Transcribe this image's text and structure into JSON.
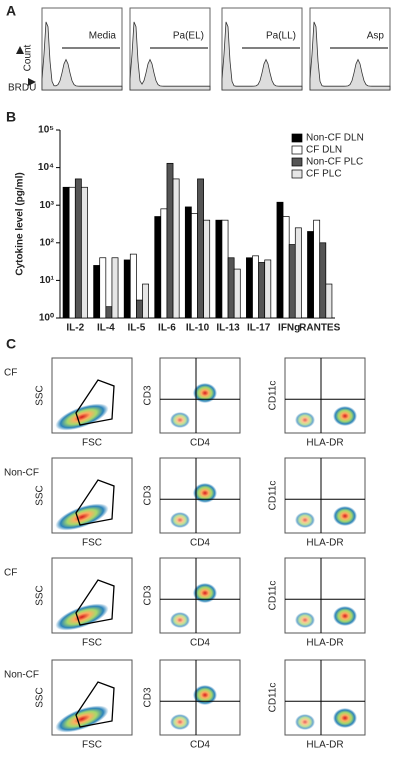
{
  "panel_a": {
    "label": "A",
    "y_axis_label": "Count",
    "x_axis_label": "BRDU",
    "histograms": [
      {
        "title": "Media"
      },
      {
        "title": "Pa(EL)"
      },
      {
        "title": "Pa(LL)"
      },
      {
        "title": "Asp"
      }
    ]
  },
  "chart_data": {
    "type": "bar",
    "label": "B",
    "y_axis_label": "Cytokine level (pg/ml)",
    "categories": [
      "IL-2",
      "IL-4",
      "IL-5",
      "IL-6",
      "IL-10",
      "IL-13",
      "IL-17",
      "IFNg",
      "RANTES"
    ],
    "series": [
      {
        "name": "Non-CF DLN",
        "color": "#000000",
        "values": [
          3000,
          25,
          35,
          500,
          900,
          400,
          40,
          1200,
          200
        ]
      },
      {
        "name": "CF DLN",
        "color": "#ffffff",
        "values": [
          3000,
          40,
          50,
          800,
          600,
          400,
          45,
          500,
          400
        ]
      },
      {
        "name": "Non-CF PLC",
        "color": "#555555",
        "values": [
          5000,
          2,
          3,
          13000,
          5000,
          40,
          30,
          90,
          100
        ]
      },
      {
        "name": "CF PLC",
        "color": "#e6e6e6",
        "values": [
          3000,
          40,
          8,
          5000,
          400,
          20,
          35,
          250,
          8
        ]
      }
    ],
    "log_scale": true,
    "ylim": [
      1,
      100000
    ],
    "yticks": [
      {
        "value": 1,
        "label": "10⁰"
      },
      {
        "value": 10,
        "label": "10¹"
      },
      {
        "value": 100,
        "label": "10²"
      },
      {
        "value": 1000,
        "label": "10³"
      },
      {
        "value": 10000,
        "label": "10⁴"
      },
      {
        "value": 100000,
        "label": "10⁵"
      }
    ],
    "legend": "top-right"
  },
  "panel_c": {
    "label": "C",
    "rows": [
      {
        "label": "CF",
        "plots": [
          {
            "x_label": "FSC",
            "y_label": "SSC"
          },
          {
            "x_label": "CD4",
            "y_label": "CD3"
          },
          {
            "x_label": "HLA-DR",
            "y_label": "CD11c"
          }
        ]
      },
      {
        "label": "Non-CF",
        "plots": [
          {
            "x_label": "FSC",
            "y_label": "SSC"
          },
          {
            "x_label": "CD4",
            "y_label": "CD3"
          },
          {
            "x_label": "HLA-DR",
            "y_label": "CD11c"
          }
        ]
      },
      {
        "label": "CF",
        "plots": [
          {
            "x_label": "FSC",
            "y_label": "SSC"
          },
          {
            "x_label": "CD4",
            "y_label": "CD3"
          },
          {
            "x_label": "HLA-DR",
            "y_label": "CD11c"
          }
        ]
      },
      {
        "label": "Non-CF",
        "plots": [
          {
            "x_label": "FSC",
            "y_label": "SSC"
          },
          {
            "x_label": "CD4",
            "y_label": "CD3"
          },
          {
            "x_label": "HLA-DR",
            "y_label": "CD11c"
          }
        ]
      }
    ]
  }
}
